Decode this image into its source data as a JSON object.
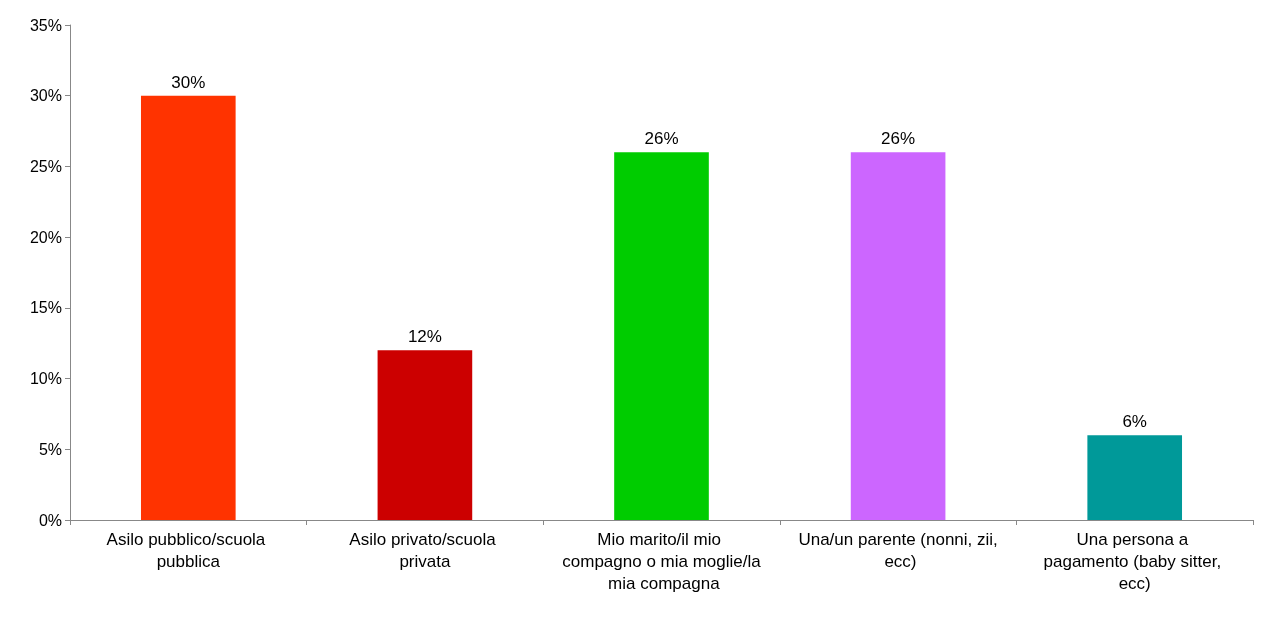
{
  "chart_data": {
    "type": "bar",
    "categories": [
      "Asilo pubblico/scuola pubblica",
      "Asilo privato/scuola privata",
      "Mio marito/il mio compagno o mia moglie/la mia compagna",
      "Una/un parente (nonni, zii, ecc)",
      "Una persona a pagamento (baby sitter, ecc)"
    ],
    "values": [
      30,
      12,
      26,
      26,
      6
    ],
    "colors": [
      "#ff3300",
      "#cc0000",
      "#00cc00",
      "#cc66ff",
      "#009999"
    ],
    "value_labels": [
      "30%",
      "12%",
      "26%",
      "26%",
      "6%"
    ],
    "ylim": [
      0,
      35
    ],
    "yticks": [
      {
        "value": 0,
        "label": "0%"
      },
      {
        "value": 5,
        "label": "5%"
      },
      {
        "value": 10,
        "label": "10%"
      },
      {
        "value": 15,
        "label": "15%"
      },
      {
        "value": 20,
        "label": "20%"
      },
      {
        "value": 25,
        "label": "25%"
      },
      {
        "value": 30,
        "label": "30%"
      },
      {
        "value": 35,
        "label": "35%"
      }
    ],
    "grid": false
  }
}
